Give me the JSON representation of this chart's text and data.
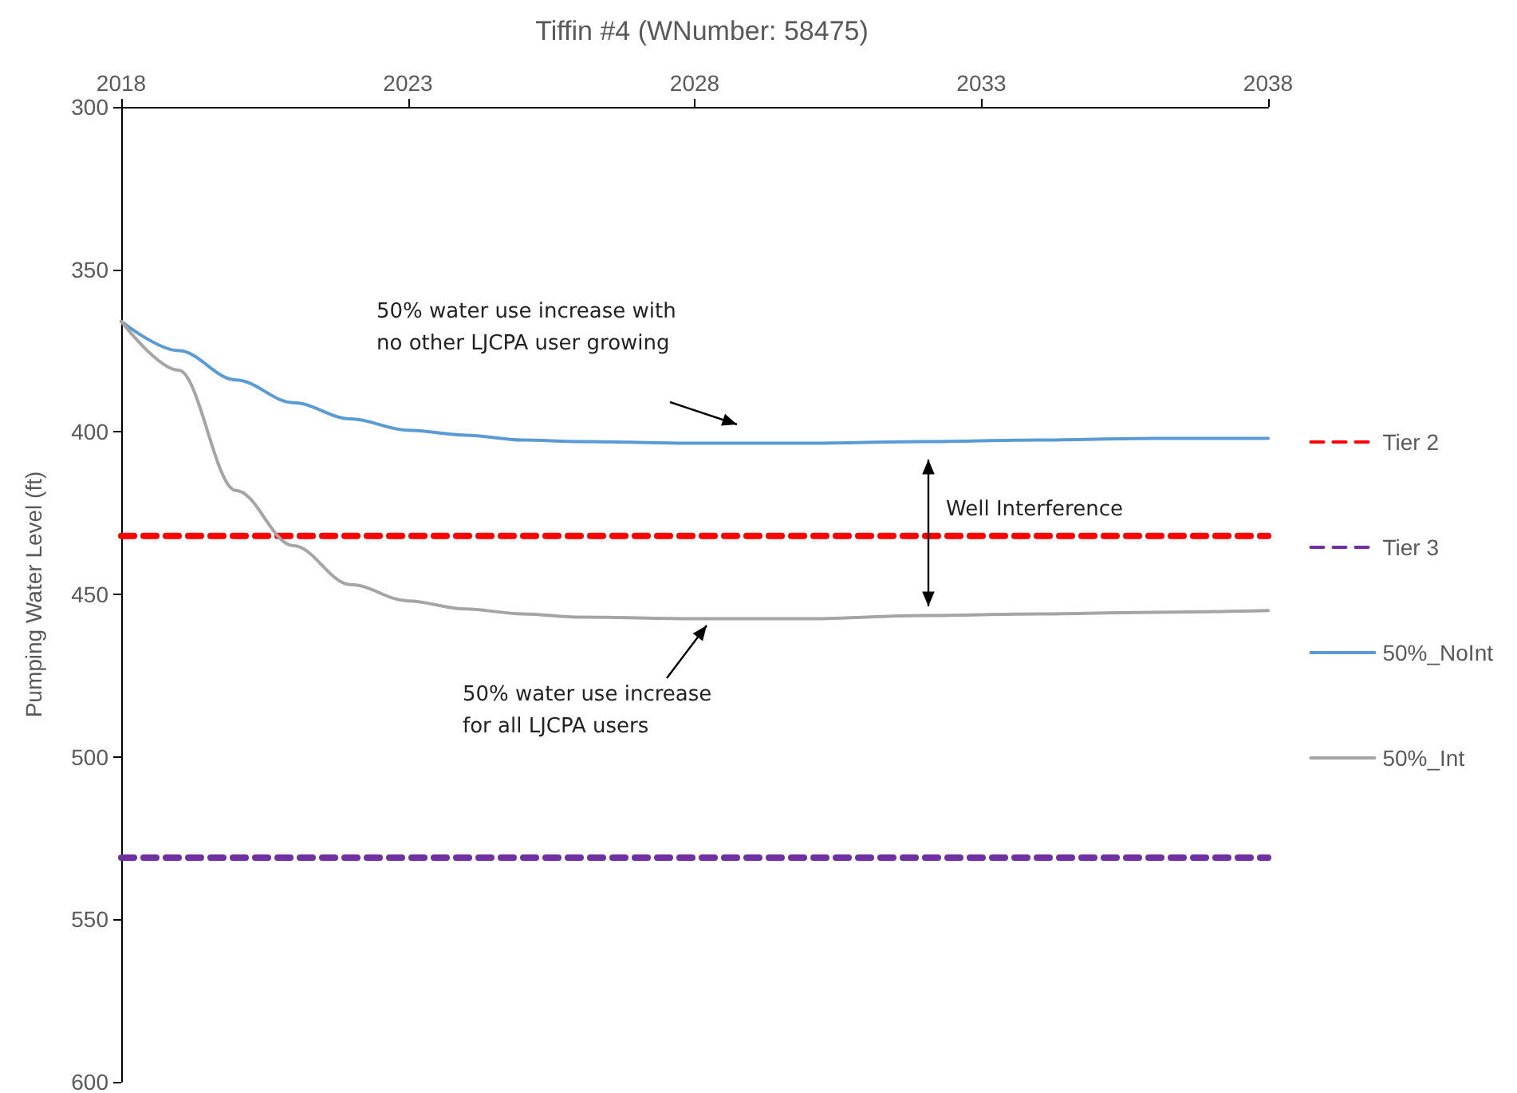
{
  "chart_data": {
    "type": "line",
    "title": "Tiffin #4 (WNumber: 58475)",
    "ylabel": "Pumping Water Level (ft)",
    "xlim": [
      2018,
      2038
    ],
    "xticks": [
      2018,
      2023,
      2028,
      2033,
      2038
    ],
    "ylim": [
      600,
      300
    ],
    "yticks": [
      300,
      350,
      400,
      450,
      500,
      550,
      600
    ],
    "grid": false,
    "legend": "right",
    "marker": "none",
    "series": [
      {
        "name": "Tier 2",
        "color": "#ff0000",
        "line_style": "dashed",
        "x": [
          2018,
          2038
        ],
        "values": [
          432,
          432
        ]
      },
      {
        "name": "Tier 3",
        "color": "#7030a0",
        "line_style": "dashed",
        "x": [
          2018,
          2038
        ],
        "values": [
          531,
          531
        ]
      },
      {
        "name": "50%_NoInt",
        "color": "#5b9bd5",
        "line_style": "solid",
        "x": [
          2018,
          2019,
          2020,
          2021,
          2022,
          2023,
          2024,
          2025,
          2026,
          2028,
          2030,
          2032,
          2034,
          2036,
          2038
        ],
        "values": [
          366,
          375,
          384,
          391,
          396,
          399.5,
          401,
          402.5,
          403,
          403.5,
          403.5,
          403,
          402.5,
          402,
          402
        ]
      },
      {
        "name": "50%_Int",
        "color": "#a5a5a5",
        "line_style": "solid",
        "x": [
          2018,
          2019,
          2020,
          2021,
          2022,
          2023,
          2024,
          2025,
          2026,
          2028,
          2030,
          2032,
          2034,
          2036,
          2038
        ],
        "values": [
          366,
          381,
          418,
          435,
          447,
          452,
          454.5,
          456,
          457,
          457.5,
          457.5,
          456.5,
          456,
          455.5,
          455
        ]
      }
    ],
    "annotations": [
      "50% water use increase with\nno other LJCPA user growing",
      "50% water use increase\nfor all LJCPA users",
      "Well Interference"
    ]
  }
}
